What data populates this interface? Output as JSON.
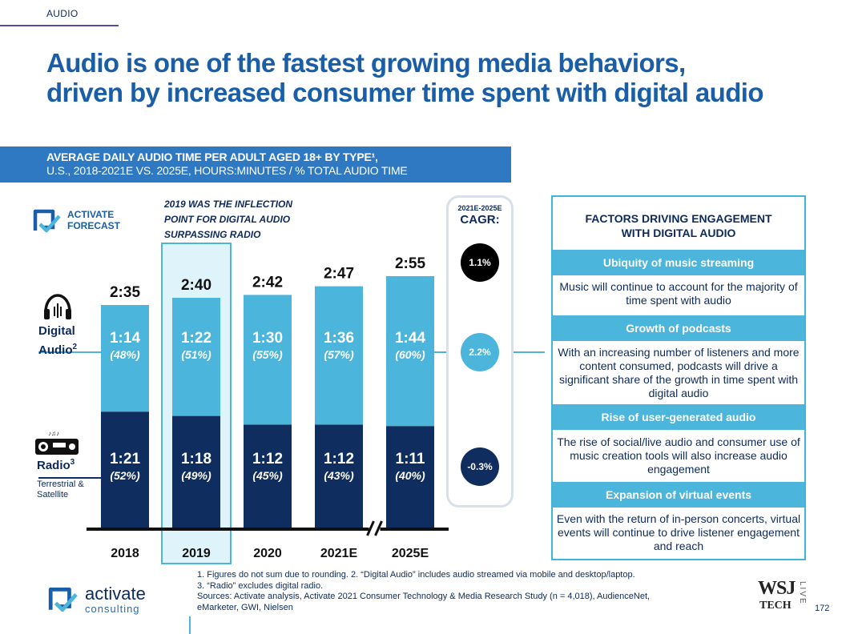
{
  "header": {
    "section": "AUDIO",
    "headline_line1": "Audio is one of the fastest growing media behaviors,",
    "headline_line2": "driven by increased consumer time spent with digital audio"
  },
  "chart_banner": {
    "line1": "AVERAGE DAILY AUDIO TIME PER ADULT AGED 18+ BY TYPE¹,",
    "line2": "U.S., 2018-2021E VS. 2025E, HOURS:MINUTES / % TOTAL AUDIO TIME"
  },
  "forecast_badge": {
    "line1": "ACTIVATE",
    "line2": "FORECAST"
  },
  "inflection_note": "2019 WAS THE INFLECTION POINT FOR DIGITAL AUDIO SURPASSING RADIO",
  "legend": {
    "digital_line1": "Digital",
    "digital_line2": "Audio",
    "digital_sup": "2",
    "radio": "Radio",
    "radio_sup": "3",
    "radio_sub_line1": "Terrestrial &",
    "radio_sub_line2": "Satellite"
  },
  "chart_data": {
    "type": "bar",
    "stacked": true,
    "categories": [
      "2018",
      "2019",
      "2020",
      "2021E",
      "2025E"
    ],
    "totals": [
      "2:35",
      "2:40",
      "2:42",
      "2:47",
      "2:55"
    ],
    "total_minutes": [
      155,
      160,
      162,
      167,
      175
    ],
    "highlighted_category": "2019",
    "axis_break_after": "2021E",
    "series": [
      {
        "name": "Radio",
        "minutes": [
          81,
          78,
          72,
          72,
          71
        ],
        "labels": [
          "1:21",
          "1:18",
          "1:12",
          "1:12",
          "1:11"
        ],
        "share_labels": [
          "(52%)",
          "(49%)",
          "(45%)",
          "(43%)",
          "(40%)"
        ],
        "color": "#0f2d5e"
      },
      {
        "name": "Digital Audio",
        "minutes": [
          74,
          82,
          90,
          96,
          104
        ],
        "labels": [
          "1:14",
          "1:22",
          "1:30",
          "1:36",
          "1:44"
        ],
        "share_labels": [
          "(48%)",
          "(51%)",
          "(55%)",
          "(57%)",
          "(60%)"
        ],
        "color": "#4bb5db"
      }
    ]
  },
  "cagr": {
    "subtitle": "2021E-2025E",
    "title": "CAGR:",
    "total": "1.1%",
    "digital": "2.2%",
    "radio": "-0.3%",
    "colors": {
      "total": "#000000",
      "digital": "#4bb5db",
      "radio": "#0f2d5e"
    }
  },
  "factors": {
    "title_line1": "FACTORS DRIVING ENGAGEMENT",
    "title_line2": "WITH DIGITAL AUDIO",
    "items": [
      {
        "heading": "Ubiquity of music streaming",
        "body": "Music will continue to account for the majority of time spent with audio"
      },
      {
        "heading": "Growth of podcasts",
        "body": "With an increasing number of listeners and more content consumed, podcasts will drive a significant share of the growth in time spent with digital audio"
      },
      {
        "heading": "Rise of user-generated audio",
        "body": "The rise of social/live audio and consumer use of music creation tools will also increase audio engagement"
      },
      {
        "heading": "Expansion of virtual events",
        "body": "Even with the return of in-person concerts, virtual events will continue to drive listener engagement and reach"
      }
    ]
  },
  "footnotes": {
    "line1": "1. Figures do not sum due to rounding.  2. “Digital Audio” includes audio streamed via mobile and desktop/laptop.",
    "line2": "3. “Radio” excludes digital radio.",
    "line3": "Sources: Activate analysis, Activate 2021 Consumer Technology & Media Research Study (n = 4,018), AudienceNet,",
    "line4": "eMarketer, GWI, Nielsen"
  },
  "footer": {
    "logo_name": "activate",
    "logo_sub": "consulting",
    "wsj": "WSJ",
    "wsj_tech": "TECH",
    "wsj_live": "LIVE",
    "page_number": "172"
  },
  "colors": {
    "navy": "#0f2d5e",
    "light_blue": "#4bb5db",
    "banner_blue": "#2f79c2",
    "headline_blue": "#1a5ea8",
    "highlight_fill": "#dff3fa"
  }
}
